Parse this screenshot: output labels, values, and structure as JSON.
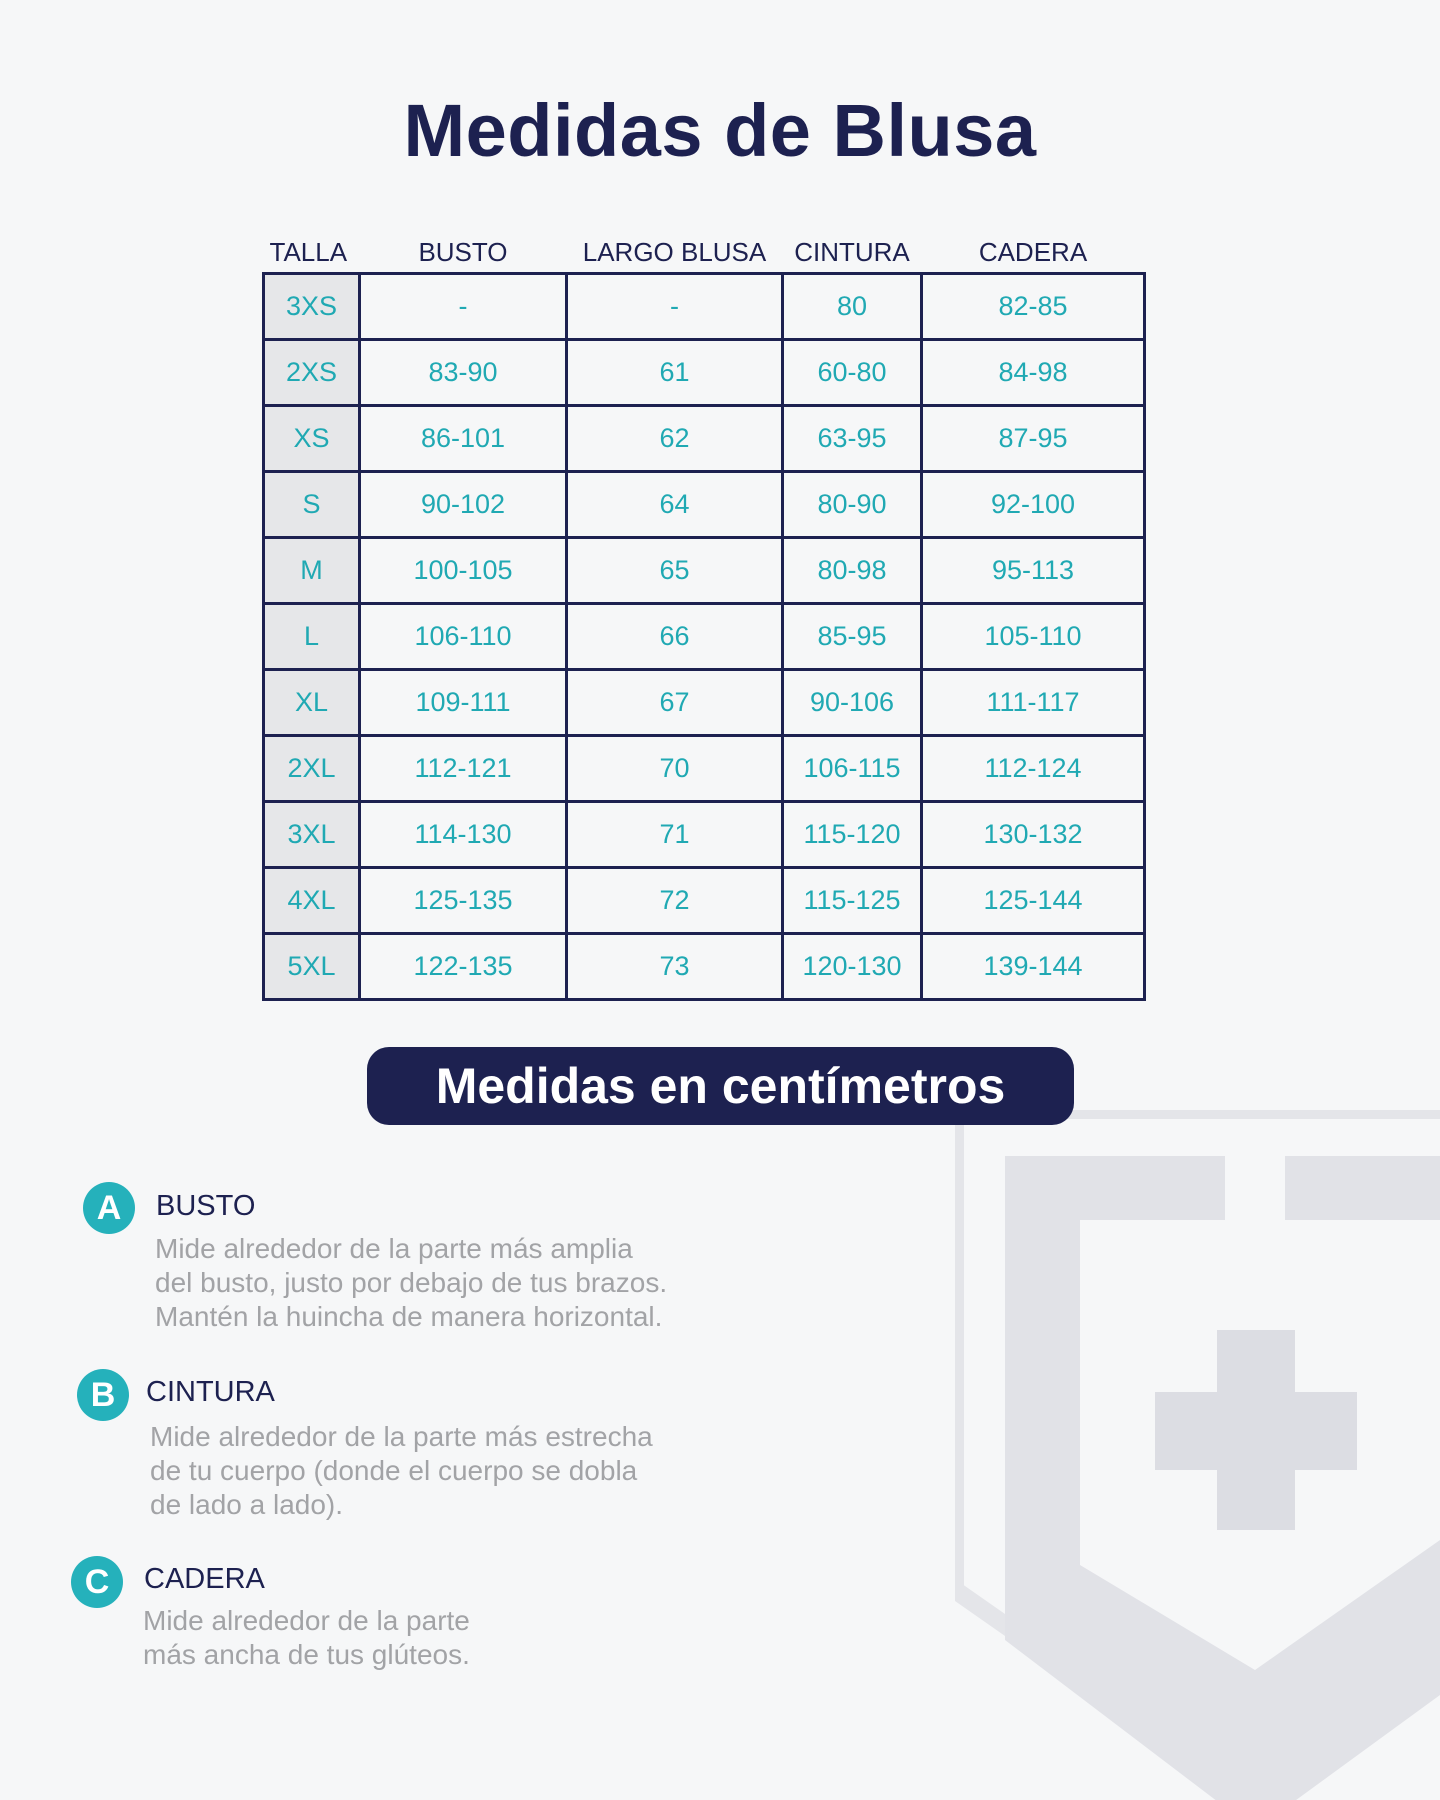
{
  "title": "Medidas de Blusa",
  "table": {
    "headers": [
      "TALLA",
      "BUSTO",
      "LARGO BLUSA",
      "CINTURA",
      "CADERA"
    ],
    "rows": [
      [
        "3XS",
        "-",
        "-",
        "80",
        "82-85"
      ],
      [
        "2XS",
        "83-90",
        "61",
        "60-80",
        "84-98"
      ],
      [
        "XS",
        "86-101",
        "62",
        "63-95",
        "87-95"
      ],
      [
        "S",
        "90-102",
        "64",
        "80-90",
        "92-100"
      ],
      [
        "M",
        "100-105",
        "65",
        "80-98",
        "95-113"
      ],
      [
        "L",
        "106-110",
        "66",
        "85-95",
        "105-110"
      ],
      [
        "XL",
        "109-111",
        "67",
        "90-106",
        "111-117"
      ],
      [
        "2XL",
        "112-121",
        "70",
        "106-115",
        "112-124"
      ],
      [
        "3XL",
        "114-130",
        "71",
        "115-120",
        "130-132"
      ],
      [
        "4XL",
        "125-135",
        "72",
        "115-125",
        "125-144"
      ],
      [
        "5XL",
        "122-135",
        "73",
        "120-130",
        "139-144"
      ]
    ]
  },
  "units_label": "Medidas en centímetros",
  "measures": [
    {
      "badge": "A",
      "title": "BUSTO",
      "lines": [
        "Mide alrededor de la parte más amplia",
        "del busto, justo por debajo de tus brazos.",
        "Mantén la huincha de manera horizontal."
      ]
    },
    {
      "badge": "B",
      "title": "CINTURA",
      "lines": [
        "Mide alrededor de la parte más estrecha",
        "de tu cuerpo (donde el cuerpo se dobla",
        "de lado a lado)."
      ]
    },
    {
      "badge": "C",
      "title": "CADERA",
      "lines": [
        "Mide alrededor de la parte",
        "más ancha de tus glúteos."
      ]
    }
  ],
  "colors": {
    "navy": "#1d2150",
    "teal": "#20a9b3",
    "gray_text": "#a2a3a6",
    "size_cell_bg": "#e6e7e9"
  },
  "watermark_icon": "shield-cross-icon"
}
